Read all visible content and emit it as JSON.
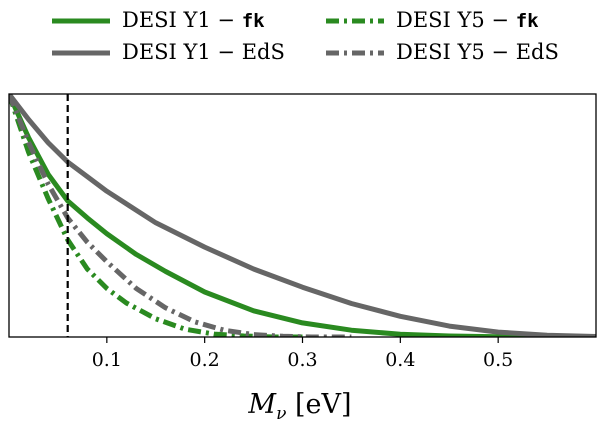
{
  "chart_data": {
    "type": "line",
    "xlabel_main": "M",
    "xlabel_sub": "ν",
    "xlabel_unit": "[eV]",
    "xlim": [
      0.0,
      0.6
    ],
    "ylim": [
      0.0,
      1.0
    ],
    "xticks": [
      0.1,
      0.2,
      0.3,
      0.4,
      0.5
    ],
    "xtick_labels": [
      "0.1",
      "0.2",
      "0.3",
      "0.4",
      "0.5"
    ],
    "show_yticks": false,
    "grid": false,
    "legend_placement": "above plot, two columns",
    "vline_x": 0.06,
    "vline_style": "dashed",
    "series": [
      {
        "name_prefix": "DESI Y1 − ",
        "name_code": "fk",
        "color": "#2a8a20",
        "dash": "solid",
        "points": [
          [
            0.0,
            1.0
          ],
          [
            0.02,
            0.82
          ],
          [
            0.04,
            0.67
          ],
          [
            0.06,
            0.56
          ],
          [
            0.08,
            0.49
          ],
          [
            0.1,
            0.425
          ],
          [
            0.13,
            0.34
          ],
          [
            0.16,
            0.27
          ],
          [
            0.2,
            0.185
          ],
          [
            0.25,
            0.108
          ],
          [
            0.3,
            0.058
          ],
          [
            0.35,
            0.028
          ],
          [
            0.4,
            0.011
          ],
          [
            0.45,
            0.004
          ],
          [
            0.5,
            0.001
          ],
          [
            0.55,
            0.0
          ],
          [
            0.6,
            0.0
          ]
        ]
      },
      {
        "name_prefix": "DESI Y5 − ",
        "name_code": "fk",
        "color": "#2a8a20",
        "dash": "dashdot",
        "points": [
          [
            0.0,
            1.0
          ],
          [
            0.02,
            0.76
          ],
          [
            0.04,
            0.57
          ],
          [
            0.06,
            0.4
          ],
          [
            0.08,
            0.28
          ],
          [
            0.1,
            0.2
          ],
          [
            0.12,
            0.14
          ],
          [
            0.15,
            0.075
          ],
          [
            0.18,
            0.032
          ],
          [
            0.21,
            0.012
          ],
          [
            0.24,
            0.004
          ],
          [
            0.27,
            0.0
          ],
          [
            0.3,
            0.0
          ]
        ]
      },
      {
        "name_prefix": "DESI Y1 − EdS",
        "name_code": "",
        "color": "#666666",
        "dash": "solid",
        "points": [
          [
            0.0,
            1.0
          ],
          [
            0.02,
            0.895
          ],
          [
            0.04,
            0.8
          ],
          [
            0.06,
            0.72
          ],
          [
            0.08,
            0.66
          ],
          [
            0.1,
            0.6
          ],
          [
            0.15,
            0.47
          ],
          [
            0.2,
            0.37
          ],
          [
            0.25,
            0.28
          ],
          [
            0.3,
            0.205
          ],
          [
            0.35,
            0.138
          ],
          [
            0.4,
            0.085
          ],
          [
            0.45,
            0.045
          ],
          [
            0.5,
            0.02
          ],
          [
            0.55,
            0.007
          ],
          [
            0.6,
            0.002
          ]
        ]
      },
      {
        "name_prefix": "DESI Y5 − EdS",
        "name_code": "",
        "color": "#666666",
        "dash": "dashdot",
        "points": [
          [
            0.0,
            1.0
          ],
          [
            0.02,
            0.8
          ],
          [
            0.04,
            0.63
          ],
          [
            0.06,
            0.49
          ],
          [
            0.08,
            0.39
          ],
          [
            0.1,
            0.31
          ],
          [
            0.13,
            0.2
          ],
          [
            0.16,
            0.12
          ],
          [
            0.19,
            0.062
          ],
          [
            0.22,
            0.028
          ],
          [
            0.25,
            0.01
          ],
          [
            0.28,
            0.003
          ],
          [
            0.31,
            0.0
          ],
          [
            0.35,
            0.0
          ]
        ]
      }
    ]
  }
}
